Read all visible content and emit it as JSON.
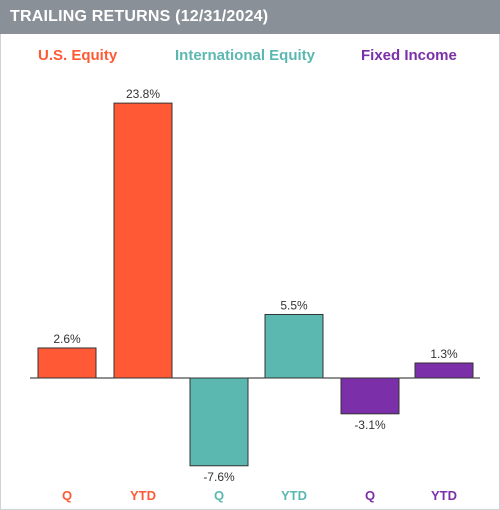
{
  "header": {
    "title": "TRAILING RETURNS (12/31/2024)"
  },
  "colors": {
    "us_equity": "#ff5a35",
    "intl_equity": "#5bb8b0",
    "fixed_income": "#7b2fa8",
    "header_bg": "#8a9098"
  },
  "chart_data": {
    "type": "bar",
    "title": "TRAILING RETURNS (12/31/2024)",
    "categories": [
      "Q",
      "YTD",
      "Q",
      "YTD",
      "Q",
      "YTD"
    ],
    "groups": [
      {
        "name": "U.S. Equity",
        "color": "#ff5a35",
        "categories": [
          "Q",
          "YTD"
        ],
        "values": [
          2.6,
          23.8
        ],
        "labels": [
          "2.6%",
          "23.8%"
        ]
      },
      {
        "name": "International Equity",
        "color": "#5bb8b0",
        "categories": [
          "Q",
          "YTD"
        ],
        "values": [
          -7.6,
          5.5
        ],
        "labels": [
          "-7.6%",
          "5.5%"
        ]
      },
      {
        "name": "Fixed Income",
        "color": "#7b2fa8",
        "categories": [
          "Q",
          "YTD"
        ],
        "values": [
          -3.1,
          1.3
        ],
        "labels": [
          "-3.1%",
          "1.3%"
        ]
      }
    ],
    "ylim": [
      -8,
      24
    ],
    "grid": false,
    "legend": "top"
  }
}
